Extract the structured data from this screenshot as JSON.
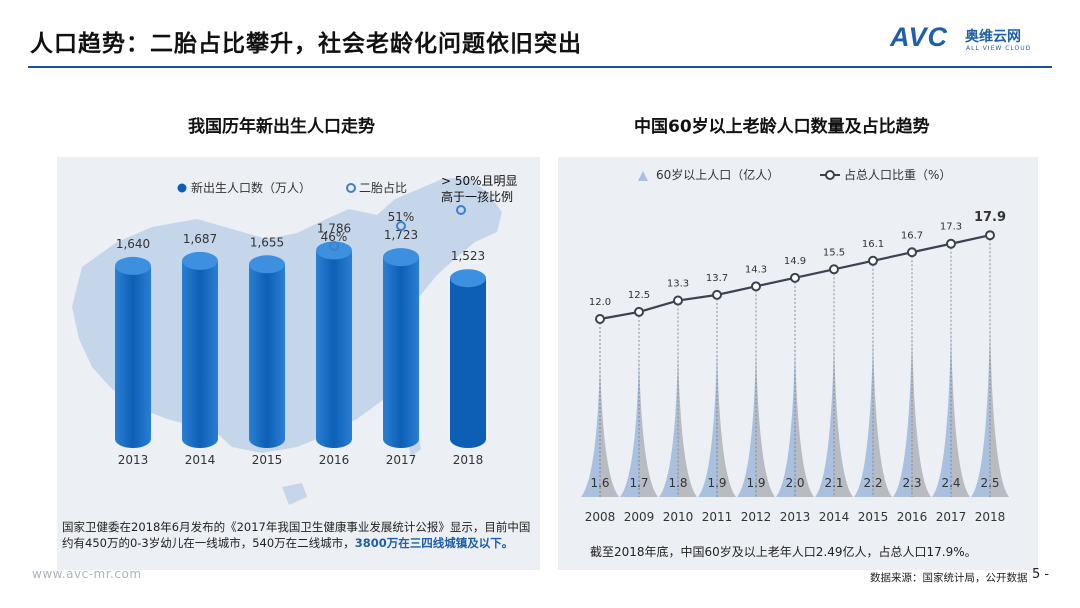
{
  "header": {
    "title": "人口趋势：二胎占比攀升，社会老龄化问题依旧突出",
    "logo_mark": "AVC",
    "logo_cn": "奥维云网",
    "logo_en": "ALL VIEW CLOUD"
  },
  "left": {
    "subtitle": "我国历年新出生人口走势",
    "annotation": "> 50%且明显高于一孩比例",
    "note_text": "国家卫健委在2018年6月发布的《2017年我国卫生健康事业发展统计公报》显示，目前中国约有450万的0-3岁幼儿在一线城市，540万在二线城市，",
    "note_bold": "3800万在三四线城镇及以下。"
  },
  "right": {
    "subtitle": "中国60岁以上老龄人口数量及占比趋势",
    "note": "截至2018年底，中国60岁及以上老年人口2.49亿人，占总人口17.9%。"
  },
  "footer": {
    "watermark": "www.avc-mr.com",
    "source": "数据来源：国家统计局，公开数据",
    "page": "5 -"
  },
  "colors": {
    "brand": "#1d4f91",
    "bar_dark": "#0d5fb5",
    "bar_light": "#2a7fd3",
    "map": "#c6d6ea",
    "spike_blue": "#a9c1de",
    "spike_grey": "#b8bcc2",
    "line": "#3b4250"
  },
  "chart_data": [
    {
      "type": "bar",
      "title": "我国历年新出生人口走势",
      "categories": [
        "2013",
        "2014",
        "2015",
        "2016",
        "2017",
        "2018"
      ],
      "series": [
        {
          "name": "新出生人口数（万人）",
          "values": [
            1640,
            1687,
            1655,
            1786,
            1723,
            1523
          ],
          "labels": [
            "1,640",
            "1,687",
            "1,655",
            "1,786",
            "1,723",
            "1,523"
          ]
        },
        {
          "name": "二胎占比",
          "values": [
            null,
            null,
            null,
            46,
            51,
            null
          ],
          "labels": [
            "",
            "",
            "",
            "46%",
            "51%",
            ""
          ]
        }
      ],
      "ylim": [
        0,
        2000
      ]
    },
    {
      "type": "line",
      "title": "中国60岁以上老龄人口数量及占比趋势",
      "categories": [
        "2008",
        "2009",
        "2010",
        "2011",
        "2012",
        "2013",
        "2014",
        "2015",
        "2016",
        "2017",
        "2018"
      ],
      "series": [
        {
          "name": "60岁以上人口（亿人）",
          "chart": "area-spike",
          "values": [
            1.6,
            1.7,
            1.8,
            1.9,
            1.9,
            2.0,
            2.1,
            2.2,
            2.3,
            2.4,
            2.5
          ],
          "labels": [
            "1.6",
            "1.7",
            "1.8",
            "1.9",
            "1.9",
            "2.0",
            "2.1",
            "2.2",
            "2.3",
            "2.4",
            "2.5"
          ]
        },
        {
          "name": "占总人口比重（%）",
          "chart": "line",
          "values": [
            12.0,
            12.5,
            13.3,
            13.7,
            14.3,
            14.9,
            15.5,
            16.1,
            16.7,
            17.3,
            17.9
          ],
          "labels": [
            "12.0",
            "12.5",
            "13.3",
            "13.7",
            "14.3",
            "14.9",
            "15.5",
            "16.1",
            "16.7",
            "17.3",
            "17.9"
          ]
        }
      ]
    }
  ]
}
